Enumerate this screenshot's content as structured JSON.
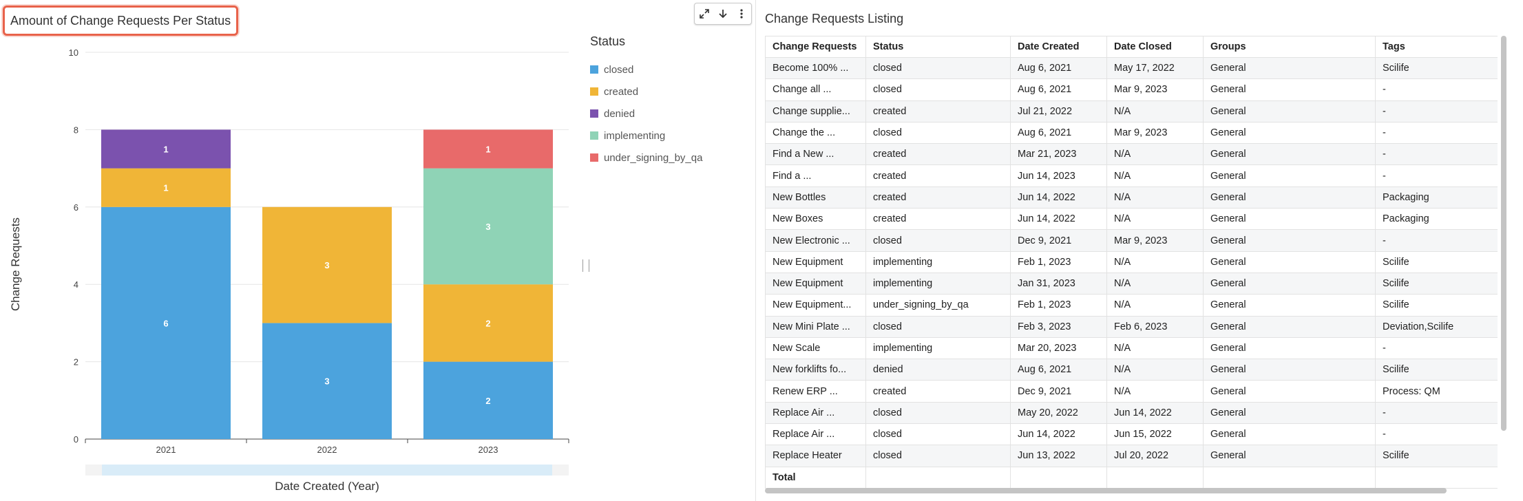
{
  "left_panel": {
    "title": "Amount of Change Requests Per Status",
    "toolbar": {
      "expand_icon": "⤢",
      "download_icon": "↓",
      "more_icon": "⋮"
    },
    "legend": {
      "title": "Status",
      "items": [
        {
          "label": "closed",
          "color": "#4ca3dd"
        },
        {
          "label": "created",
          "color": "#f0b537"
        },
        {
          "label": "denied",
          "color": "#7b52ae"
        },
        {
          "label": "implementing",
          "color": "#8fd3b6"
        },
        {
          "label": "under_signing_by_qa",
          "color": "#e86a6a"
        }
      ]
    }
  },
  "chart_data": {
    "type": "bar",
    "stacked": true,
    "categories": [
      "2021",
      "2022",
      "2023"
    ],
    "series": [
      {
        "name": "closed",
        "color": "#4ca3dd",
        "values": [
          6,
          3,
          2
        ]
      },
      {
        "name": "created",
        "color": "#f0b537",
        "values": [
          1,
          3,
          2
        ]
      },
      {
        "name": "denied",
        "color": "#7b52ae",
        "values": [
          1,
          0,
          0
        ]
      },
      {
        "name": "implementing",
        "color": "#8fd3b6",
        "values": [
          0,
          0,
          3
        ]
      },
      {
        "name": "under_signing_by_qa",
        "color": "#e86a6a",
        "values": [
          0,
          0,
          1
        ]
      }
    ],
    "title": "Amount of Change Requests Per Status",
    "xlabel": "Date Created (Year)",
    "ylabel": "Change Requests",
    "ylim": [
      0,
      10
    ],
    "yticks": [
      0,
      2,
      4,
      6,
      8,
      10
    ],
    "grid": true,
    "legend_title": "Status",
    "legend_position": "right"
  },
  "right_panel": {
    "title": "Change Requests Listing",
    "columns": [
      "Change Requests",
      "Status",
      "Date Created",
      "Date Closed",
      "Groups",
      "Tags"
    ],
    "rows": [
      [
        "Become 100% ...",
        "closed",
        "Aug 6, 2021",
        "May 17, 2022",
        "General",
        "Scilife"
      ],
      [
        "Change all ...",
        "closed",
        "Aug 6, 2021",
        "Mar 9, 2023",
        "General",
        "-"
      ],
      [
        "Change supplie...",
        "created",
        "Jul 21, 2022",
        "N/A",
        "General",
        "-"
      ],
      [
        "Change the ...",
        "closed",
        "Aug 6, 2021",
        "Mar 9, 2023",
        "General",
        "-"
      ],
      [
        "Find a New ...",
        "created",
        "Mar 21, 2023",
        "N/A",
        "General",
        "-"
      ],
      [
        "Find a ...",
        "created",
        "Jun 14, 2023",
        "N/A",
        "General",
        "-"
      ],
      [
        "New Bottles",
        "created",
        "Jun 14, 2022",
        "N/A",
        "General",
        "Packaging"
      ],
      [
        "New Boxes",
        "created",
        "Jun 14, 2022",
        "N/A",
        "General",
        "Packaging"
      ],
      [
        "New Electronic ...",
        "closed",
        "Dec 9, 2021",
        "Mar 9, 2023",
        "General",
        "-"
      ],
      [
        "New Equipment",
        "implementing",
        "Feb 1, 2023",
        "N/A",
        "General",
        "Scilife"
      ],
      [
        "New Equipment",
        "implementing",
        "Jan 31, 2023",
        "N/A",
        "General",
        "Scilife"
      ],
      [
        "New Equipment...",
        "under_signing_by_qa",
        "Feb 1, 2023",
        "N/A",
        "General",
        "Scilife"
      ],
      [
        "New Mini Plate ...",
        "closed",
        "Feb 3, 2023",
        "Feb 6, 2023",
        "General",
        "Deviation,Scilife"
      ],
      [
        "New Scale",
        "implementing",
        "Mar 20, 2023",
        "N/A",
        "General",
        "-"
      ],
      [
        "New forklifts fo...",
        "denied",
        "Aug 6, 2021",
        "N/A",
        "General",
        "Scilife"
      ],
      [
        "Renew ERP ...",
        "created",
        "Dec 9, 2021",
        "N/A",
        "General",
        "Process: QM"
      ],
      [
        "Replace Air ...",
        "closed",
        "May 20, 2022",
        "Jun 14, 2022",
        "General",
        "-"
      ],
      [
        "Replace Air ...",
        "closed",
        "Jun 14, 2022",
        "Jun 15, 2022",
        "General",
        "-"
      ],
      [
        "Replace Heater",
        "closed",
        "Jun 13, 2022",
        "Jul 20, 2022",
        "General",
        "Scilife"
      ]
    ],
    "total_label": "Total"
  }
}
